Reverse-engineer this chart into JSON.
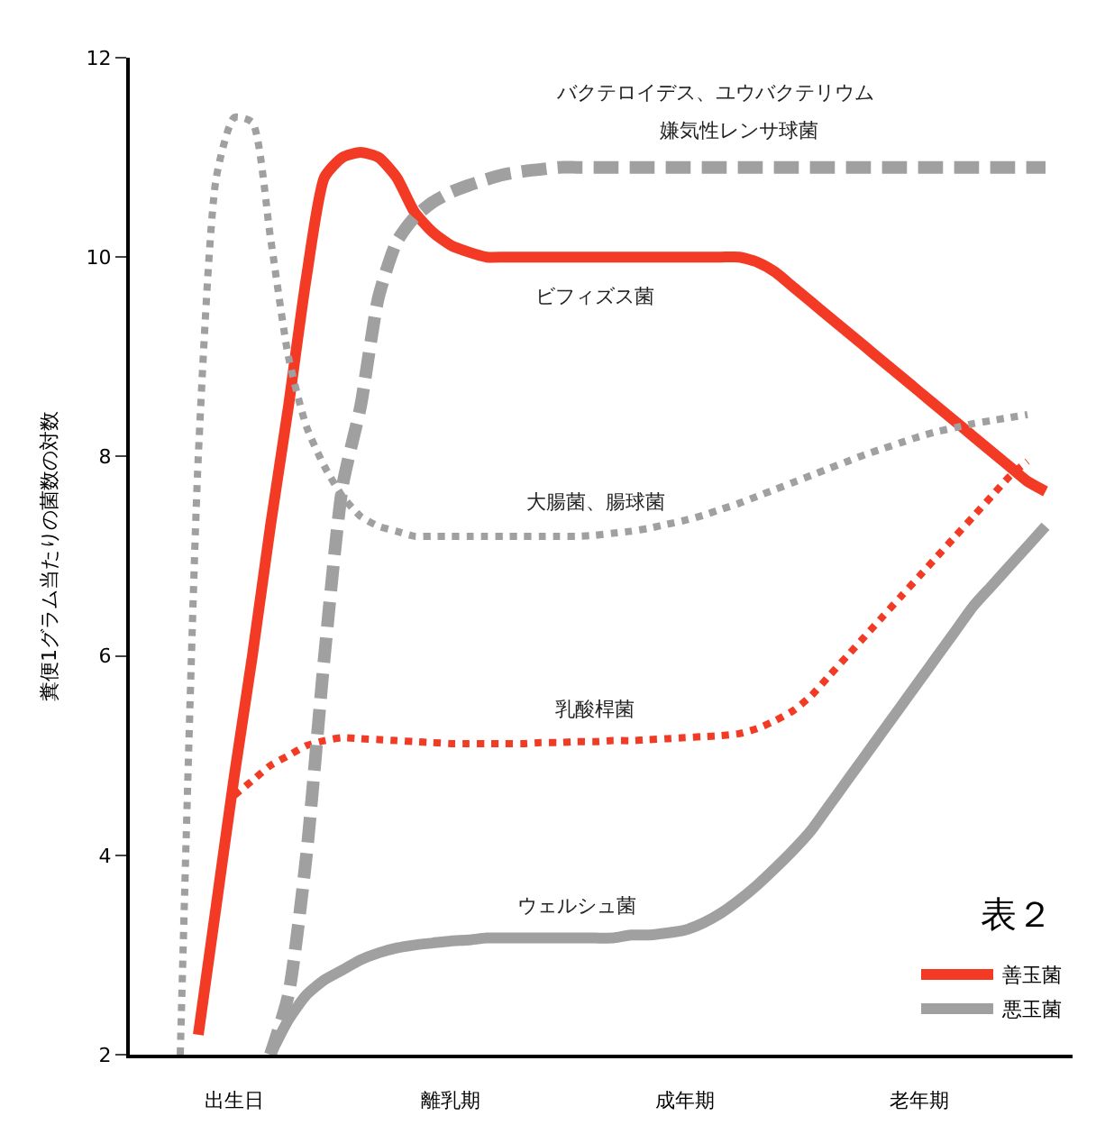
{
  "chart_data": {
    "type": "line",
    "ylabel": "糞便1グラム当たりの菌数の対数",
    "categories": [
      null,
      null,
      null,
      null,
      null,
      "出生日",
      null,
      null,
      null,
      null,
      null,
      null,
      null,
      null,
      null,
      null,
      null,
      "離乳期",
      null,
      null,
      null,
      null,
      null,
      null,
      null,
      null,
      null,
      null,
      null,
      null,
      "成年期",
      null,
      null,
      null,
      null,
      null,
      null,
      null,
      null,
      null,
      null,
      null,
      null,
      "老年期",
      null,
      null,
      null,
      null,
      null,
      null,
      null,
      null
    ],
    "ylim": [
      2,
      12
    ],
    "yticks": [
      2,
      4,
      6,
      8,
      10,
      12
    ],
    "legend": "bottom right",
    "marker": "none",
    "annotations": [
      "表２",
      "バクテロイデス、ユウバクテリウム"
    ],
    "series": [
      {
        "name": "ビフィズス菌",
        "color": "#f23a24",
        "line_style": "solid",
        "values": [
          null,
          null,
          null,
          2.2,
          3.5,
          4.8,
          6.0,
          7.3,
          8.5,
          9.8,
          10.8,
          11.0,
          11.05,
          11.0,
          10.8,
          10.45,
          10.25,
          10.12,
          10.05,
          10.0,
          10,
          10,
          10,
          10,
          10,
          10,
          10,
          10,
          10,
          10,
          10,
          10,
          10,
          10,
          9.95,
          9.85,
          9.7,
          9.55,
          9.4,
          9.25,
          9.1,
          8.95,
          8.8,
          8.65,
          8.5,
          8.35,
          8.2,
          8.05,
          7.9,
          7.75,
          7.65,
          null
        ]
      },
      {
        "name": "乳酸桿菌",
        "color": "#f23a24",
        "line_style": "dotted",
        "values": [
          null,
          null,
          null,
          null,
          null,
          4.6,
          4.75,
          4.9,
          5.0,
          5.1,
          5.15,
          5.18,
          5.17,
          5.16,
          5.15,
          5.14,
          5.13,
          5.12,
          5.12,
          5.12,
          5.12,
          5.12,
          5.13,
          5.13,
          5.14,
          5.14,
          5.15,
          5.15,
          5.16,
          5.17,
          5.18,
          5.19,
          5.2,
          5.22,
          5.27,
          5.35,
          5.45,
          5.6,
          5.8,
          6.0,
          6.2,
          6.4,
          6.6,
          6.8,
          7.0,
          7.2,
          7.4,
          7.6,
          7.8,
          7.95,
          null,
          null
        ]
      },
      {
        "name": "大腸菌、腸球菌",
        "color": "#a0a0a0",
        "line_style": "dotted",
        "values": [
          null,
          null,
          2.0,
          8.0,
          10.8,
          11.4,
          11.35,
          10.2,
          9.0,
          8.3,
          7.9,
          7.6,
          7.4,
          7.3,
          7.25,
          7.2,
          7.2,
          7.2,
          7.2,
          7.2,
          7.2,
          7.2,
          7.2,
          7.2,
          7.2,
          7.21,
          7.23,
          7.25,
          7.28,
          7.32,
          7.36,
          7.41,
          7.47,
          7.53,
          7.6,
          7.67,
          7.74,
          7.81,
          7.88,
          7.95,
          8.02,
          8.08,
          8.14,
          8.2,
          8.25,
          8.29,
          8.33,
          8.36,
          8.39,
          8.42,
          null,
          null
        ]
      },
      {
        "name": "嫌気性レンサ球菌",
        "color": "#a0a0a0",
        "line_style": "dashed",
        "values": [
          null,
          null,
          null,
          null,
          null,
          null,
          null,
          2.0,
          2.6,
          4.0,
          6.0,
          7.7,
          8.5,
          9.6,
          10.15,
          10.4,
          10.55,
          10.65,
          10.72,
          10.78,
          10.83,
          10.86,
          10.88,
          10.9,
          10.9,
          10.9,
          10.9,
          10.9,
          10.9,
          10.9,
          10.9,
          10.9,
          10.9,
          10.9,
          10.9,
          10.9,
          10.9,
          10.9,
          10.9,
          10.9,
          10.9,
          10.9,
          10.9,
          10.9,
          10.9,
          10.9,
          10.9,
          10.9,
          10.9,
          10.9,
          10.9,
          null
        ]
      },
      {
        "name": "ウェルシュ菌",
        "color": "#a0a0a0",
        "line_style": "solid",
        "values": [
          null,
          null,
          null,
          null,
          null,
          null,
          null,
          2.0,
          2.35,
          2.6,
          2.75,
          2.85,
          2.95,
          3.02,
          3.07,
          3.1,
          3.12,
          3.14,
          3.15,
          3.17,
          3.17,
          3.17,
          3.17,
          3.17,
          3.17,
          3.17,
          3.17,
          3.2,
          3.2,
          3.22,
          3.25,
          3.32,
          3.42,
          3.55,
          3.7,
          3.87,
          4.05,
          4.25,
          4.5,
          4.75,
          5.0,
          5.25,
          5.5,
          5.75,
          6.0,
          6.25,
          6.5,
          6.7,
          6.9,
          7.1,
          7.3,
          null
        ]
      },
      {
        "name": "善玉菌",
        "color": "#f23a24",
        "line_style": "solid",
        "values": [
          null,
          null,
          null,
          null,
          null,
          null,
          null,
          null,
          null,
          null,
          null,
          null,
          null,
          null,
          null,
          null,
          null,
          null,
          null,
          null,
          null,
          null,
          null,
          null,
          null,
          null,
          null,
          null,
          null,
          null,
          null,
          null,
          null,
          null,
          null,
          null,
          null,
          null,
          null,
          null,
          null,
          null,
          null,
          null,
          null,
          null,
          null,
          null,
          null,
          null,
          null,
          null
        ]
      },
      {
        "name": "悪玉菌",
        "color": "#a0a0a0",
        "line_style": "solid",
        "values": [
          null,
          null,
          null,
          null,
          null,
          null,
          null,
          null,
          null,
          null,
          null,
          null,
          null,
          null,
          null,
          null,
          null,
          null,
          null,
          null,
          null,
          null,
          null,
          null,
          null,
          null,
          null,
          null,
          null,
          null,
          null,
          null,
          null,
          null,
          null,
          null,
          null,
          null,
          null,
          null,
          null,
          null,
          null,
          null,
          null,
          null,
          null,
          null,
          null,
          null,
          null,
          null
        ]
      }
    ]
  }
}
